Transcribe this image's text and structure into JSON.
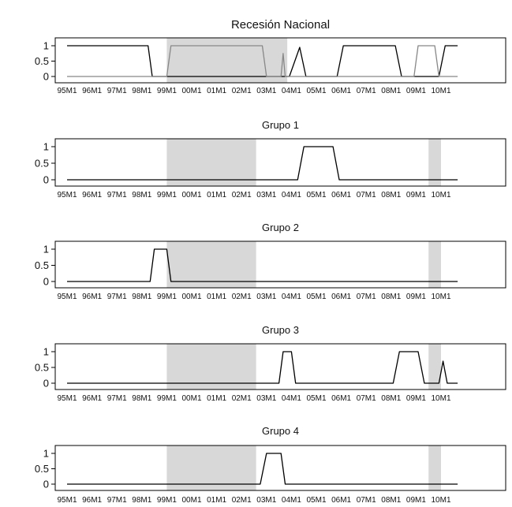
{
  "chart_data": [
    {
      "type": "line",
      "title": "Recesión Nacional",
      "xlabel": "",
      "ylabel": "",
      "ylim": [
        0,
        1
      ],
      "yticks": [
        1,
        0.5,
        0
      ],
      "ytick_labels": [
        "1",
        "0.5",
        "0"
      ],
      "xticks": [
        "95M1",
        "96M1",
        "97M1",
        "98M1",
        "99M1",
        "00M1",
        "01M1",
        "02M1",
        "03M1",
        "04M1",
        "05M1",
        "06M1",
        "07M1",
        "08M1",
        "09M1",
        "10M1"
      ],
      "shaded_periods": [
        [
          "1999-01",
          "2003-11"
        ]
      ],
      "grid": false,
      "colors": {
        "shade": "#d8d8d8",
        "line_dark": "#000000",
        "line_gray": "#888888"
      },
      "series": [
        {
          "color": "#000000",
          "x": [
            "1995-01",
            "1998-04",
            "1998-06",
            "2003-12",
            "2004-05",
            "2004-08",
            "2005-11",
            "2006-02",
            "2008-03",
            "2008-06",
            "2009-12",
            "2010-03",
            "2010-09"
          ],
          "y": [
            1,
            1,
            0,
            0,
            0.95,
            0,
            0,
            1,
            1,
            0,
            0,
            1,
            1
          ]
        },
        {
          "color": "#888888",
          "x": [
            "1995-01",
            "1999-01",
            "1999-03",
            "2002-11",
            "2003-01",
            "2003-08",
            "2003-09",
            "2003-10",
            "2008-12",
            "2009-02",
            "2009-10",
            "2009-12",
            "2010-09"
          ],
          "y": [
            0,
            0,
            1,
            1,
            0,
            0,
            0.75,
            0,
            0,
            1,
            1,
            0,
            0
          ]
        }
      ]
    },
    {
      "type": "line",
      "title": "Grupo 1",
      "xlabel": "",
      "ylabel": "",
      "ylim": [
        0,
        1
      ],
      "yticks": [
        1,
        0.5,
        0
      ],
      "ytick_labels": [
        "1",
        "0.5",
        "0"
      ],
      "xticks": [
        "95M1",
        "96M1",
        "97M1",
        "98M1",
        "99M1",
        "00M1",
        "01M1",
        "02M1",
        "03M1",
        "04M1",
        "05M1",
        "06M1",
        "07M1",
        "08M1",
        "09M1",
        "10M1"
      ],
      "shaded_periods": [
        [
          "1999-01",
          "2002-08"
        ],
        [
          "2009-07",
          "2010-01"
        ]
      ],
      "grid": false,
      "colors": {
        "shade": "#d8d8d8",
        "line_dark": "#000000"
      },
      "series": [
        {
          "color": "#000000",
          "x": [
            "1995-01",
            "2004-04",
            "2004-07",
            "2005-09",
            "2005-12",
            "2010-09"
          ],
          "y": [
            0,
            0,
            1,
            1,
            0,
            0
          ]
        }
      ]
    },
    {
      "type": "line",
      "title": "Grupo 2",
      "xlabel": "",
      "ylabel": "",
      "ylim": [
        0,
        1
      ],
      "yticks": [
        1,
        0.5,
        0
      ],
      "ytick_labels": [
        "1",
        "0.5",
        "0"
      ],
      "xticks": [
        "95M1",
        "96M1",
        "97M1",
        "98M1",
        "99M1",
        "00M1",
        "01M1",
        "02M1",
        "03M1",
        "04M1",
        "05M1",
        "06M1",
        "07M1",
        "08M1",
        "09M1",
        "10M1"
      ],
      "shaded_periods": [
        [
          "1999-01",
          "2002-08"
        ],
        [
          "2009-07",
          "2010-01"
        ]
      ],
      "grid": false,
      "colors": {
        "shade": "#d8d8d8",
        "line_dark": "#000000"
      },
      "series": [
        {
          "color": "#000000",
          "x": [
            "1995-01",
            "1998-05",
            "1998-07",
            "1999-01",
            "1999-03",
            "2010-09"
          ],
          "y": [
            0,
            0,
            1,
            1,
            0,
            0
          ]
        }
      ]
    },
    {
      "type": "line",
      "title": "Grupo 3",
      "xlabel": "",
      "ylabel": "",
      "ylim": [
        0,
        1
      ],
      "yticks": [
        1,
        0.5,
        0
      ],
      "ytick_labels": [
        "1",
        "0.5",
        "0"
      ],
      "xticks": [
        "95M1",
        "96M1",
        "97M1",
        "98M1",
        "99M1",
        "00M1",
        "01M1",
        "02M1",
        "03M1",
        "04M1",
        "05M1",
        "06M1",
        "07M1",
        "08M1",
        "09M1",
        "10M1"
      ],
      "shaded_periods": [
        [
          "1999-01",
          "2002-08"
        ],
        [
          "2009-07",
          "2010-01"
        ]
      ],
      "grid": false,
      "colors": {
        "shade": "#d8d8d8",
        "line_dark": "#000000"
      },
      "series": [
        {
          "color": "#000000",
          "x": [
            "1995-01",
            "2003-07",
            "2003-09",
            "2004-01",
            "2004-03",
            "2008-02",
            "2008-05",
            "2009-02",
            "2009-05",
            "2009-12",
            "2010-02",
            "2010-04",
            "2010-09"
          ],
          "y": [
            0,
            0,
            1,
            1,
            0,
            0,
            1,
            1,
            0,
            0,
            0.7,
            0,
            0
          ]
        }
      ]
    },
    {
      "type": "line",
      "title": "Grupo 4",
      "xlabel": "",
      "ylabel": "",
      "ylim": [
        0,
        1
      ],
      "yticks": [
        1,
        0.5,
        0
      ],
      "ytick_labels": [
        "1",
        "0.5",
        "0"
      ],
      "xticks": [
        "95M1",
        "96M1",
        "97M1",
        "98M1",
        "99M1",
        "00M1",
        "01M1",
        "02M1",
        "03M1",
        "04M1",
        "05M1",
        "06M1",
        "07M1",
        "08M1",
        "09M1",
        "10M1"
      ],
      "shaded_periods": [
        [
          "1999-01",
          "2002-08"
        ],
        [
          "2009-07",
          "2010-01"
        ]
      ],
      "grid": false,
      "colors": {
        "shade": "#d8d8d8",
        "line_dark": "#000000"
      },
      "series": [
        {
          "color": "#000000",
          "x": [
            "1995-01",
            "2002-10",
            "2003-01",
            "2003-08",
            "2003-10",
            "2010-09"
          ],
          "y": [
            0,
            0,
            1,
            1,
            0,
            0
          ]
        }
      ]
    }
  ]
}
